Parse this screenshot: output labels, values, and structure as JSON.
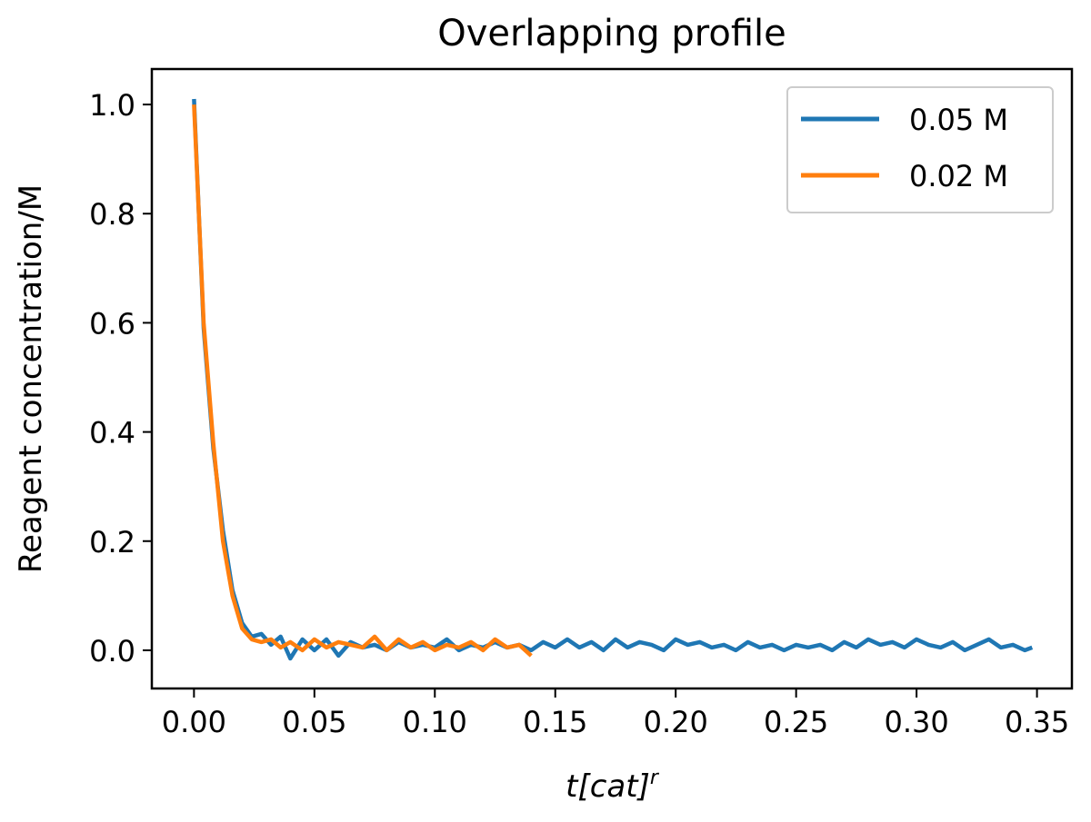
{
  "chart_data": {
    "type": "line",
    "title": "Overlapping profile",
    "xlabel_base": "t[cat]",
    "xlabel_sup": "r",
    "ylabel": "Reagent concentration/M",
    "xlim": [
      -0.0175,
      0.3645
    ],
    "ylim": [
      -0.07,
      1.065
    ],
    "xticks": [
      0.0,
      0.05,
      0.1,
      0.15,
      0.2,
      0.25,
      0.3,
      0.35
    ],
    "xtick_labels": [
      "0.00",
      "0.05",
      "0.10",
      "0.15",
      "0.20",
      "0.25",
      "0.30",
      "0.35"
    ],
    "yticks": [
      0.0,
      0.2,
      0.4,
      0.6,
      0.8,
      1.0
    ],
    "ytick_labels": [
      "0.0",
      "0.2",
      "0.4",
      "0.6",
      "0.8",
      "1.0"
    ],
    "grid": false,
    "legend_position": "top-right",
    "series": [
      {
        "name": "0.05 M",
        "color": "#1f77b4",
        "x": [
          0,
          0.004,
          0.008,
          0.012,
          0.016,
          0.02,
          0.024,
          0.028,
          0.032,
          0.036,
          0.04,
          0.045,
          0.05,
          0.055,
          0.06,
          0.065,
          0.07,
          0.075,
          0.08,
          0.085,
          0.09,
          0.095,
          0.1,
          0.105,
          0.11,
          0.115,
          0.12,
          0.125,
          0.13,
          0.135,
          0.14,
          0.145,
          0.15,
          0.155,
          0.16,
          0.165,
          0.17,
          0.175,
          0.18,
          0.185,
          0.19,
          0.195,
          0.2,
          0.205,
          0.21,
          0.215,
          0.22,
          0.225,
          0.23,
          0.235,
          0.24,
          0.245,
          0.25,
          0.255,
          0.26,
          0.265,
          0.27,
          0.275,
          0.28,
          0.285,
          0.29,
          0.295,
          0.3,
          0.305,
          0.31,
          0.315,
          0.32,
          0.325,
          0.33,
          0.335,
          0.34,
          0.345,
          0.348
        ],
        "y": [
          1.01,
          0.59,
          0.37,
          0.22,
          0.11,
          0.05,
          0.025,
          0.03,
          0.01,
          0.025,
          -0.015,
          0.02,
          0.0,
          0.02,
          -0.01,
          0.015,
          0.005,
          0.01,
          0.0,
          0.015,
          0.005,
          0.01,
          0.005,
          0.02,
          0.0,
          0.01,
          0.005,
          0.015,
          0.005,
          0.01,
          0.0,
          0.015,
          0.005,
          0.02,
          0.005,
          0.015,
          0.0,
          0.02,
          0.005,
          0.015,
          0.01,
          0.0,
          0.02,
          0.01,
          0.015,
          0.005,
          0.01,
          0.0,
          0.015,
          0.005,
          0.01,
          0.0,
          0.01,
          0.005,
          0.01,
          0.0,
          0.015,
          0.005,
          0.02,
          0.01,
          0.015,
          0.005,
          0.02,
          0.01,
          0.005,
          0.015,
          0.0,
          0.01,
          0.02,
          0.005,
          0.01,
          0.0,
          0.005
        ]
      },
      {
        "name": "0.02 M",
        "color": "#ff7f0e",
        "x": [
          0,
          0.004,
          0.008,
          0.012,
          0.016,
          0.02,
          0.024,
          0.028,
          0.032,
          0.036,
          0.04,
          0.045,
          0.05,
          0.055,
          0.06,
          0.065,
          0.07,
          0.075,
          0.08,
          0.085,
          0.09,
          0.095,
          0.1,
          0.105,
          0.11,
          0.115,
          0.12,
          0.125,
          0.13,
          0.135,
          0.14
        ],
        "y": [
          1.0,
          0.6,
          0.38,
          0.2,
          0.1,
          0.04,
          0.02,
          0.015,
          0.02,
          0.005,
          0.015,
          0.0,
          0.02,
          0.005,
          0.015,
          0.01,
          0.005,
          0.025,
          0.0,
          0.02,
          0.005,
          0.015,
          0.0,
          0.01,
          0.005,
          0.015,
          0.0,
          0.02,
          0.005,
          0.01,
          -0.01
        ]
      }
    ]
  }
}
